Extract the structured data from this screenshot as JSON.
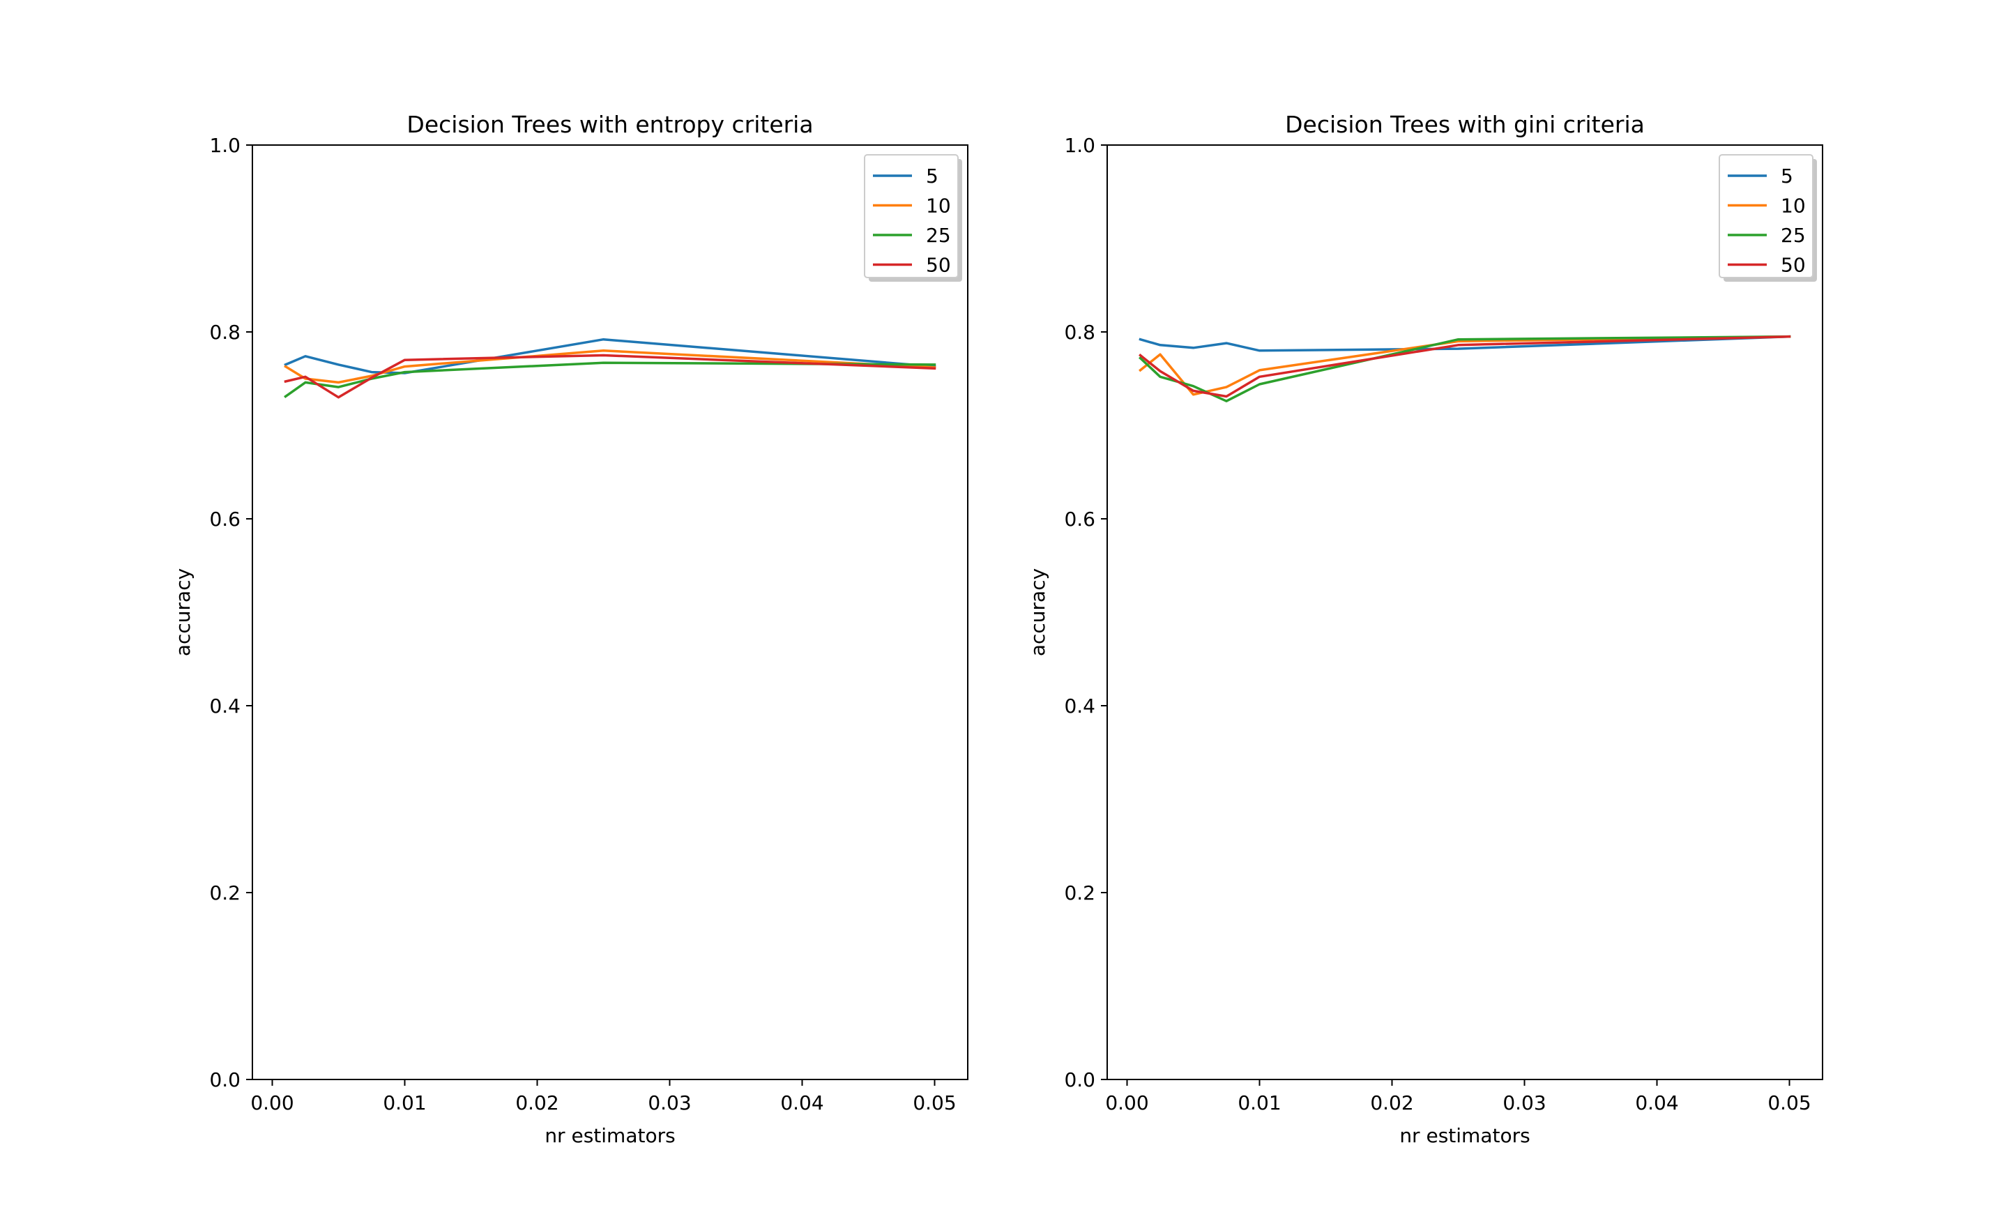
{
  "chart_data": [
    {
      "type": "line",
      "title": "Decision Trees with entropy criteria",
      "xlabel": "nr estimators",
      "ylabel": "accuracy",
      "xlim": [
        -0.0015,
        0.0525
      ],
      "ylim": [
        0.0,
        1.0
      ],
      "xticks": [
        0.0,
        0.01,
        0.02,
        0.03,
        0.04,
        0.05
      ],
      "xtick_labels": [
        "0.00",
        "0.01",
        "0.02",
        "0.03",
        "0.04",
        "0.05"
      ],
      "yticks": [
        0.0,
        0.2,
        0.4,
        0.6,
        0.8,
        1.0
      ],
      "ytick_labels": [
        "0.0",
        "0.2",
        "0.4",
        "0.6",
        "0.8",
        "1.0"
      ],
      "grid": false,
      "legend_position": "top-right",
      "series": [
        {
          "name": "5",
          "color": "#1f77b4",
          "x": [
            0.001,
            0.0025,
            0.005,
            0.0075,
            0.01,
            0.025,
            0.05
          ],
          "y": [
            0.765,
            0.774,
            0.765,
            0.757,
            0.756,
            0.792,
            0.763
          ]
        },
        {
          "name": "10",
          "color": "#ff7f0e",
          "x": [
            0.001,
            0.0025,
            0.005,
            0.0075,
            0.01,
            0.025,
            0.05
          ],
          "y": [
            0.763,
            0.75,
            0.746,
            0.753,
            0.763,
            0.78,
            0.762
          ]
        },
        {
          "name": "25",
          "color": "#2ca02c",
          "x": [
            0.001,
            0.0025,
            0.005,
            0.0075,
            0.01,
            0.025,
            0.05
          ],
          "y": [
            0.731,
            0.746,
            0.741,
            0.75,
            0.757,
            0.767,
            0.765
          ]
        },
        {
          "name": "50",
          "color": "#d62728",
          "x": [
            0.001,
            0.0025,
            0.005,
            0.0075,
            0.01,
            0.025,
            0.05
          ],
          "y": [
            0.747,
            0.752,
            0.73,
            0.751,
            0.77,
            0.775,
            0.761
          ]
        }
      ]
    },
    {
      "type": "line",
      "title": "Decision Trees with gini criteria",
      "xlabel": "nr estimators",
      "ylabel": "accuracy",
      "xlim": [
        -0.0015,
        0.0525
      ],
      "ylim": [
        0.0,
        1.0
      ],
      "xticks": [
        0.0,
        0.01,
        0.02,
        0.03,
        0.04,
        0.05
      ],
      "xtick_labels": [
        "0.00",
        "0.01",
        "0.02",
        "0.03",
        "0.04",
        "0.05"
      ],
      "yticks": [
        0.0,
        0.2,
        0.4,
        0.6,
        0.8,
        1.0
      ],
      "ytick_labels": [
        "0.0",
        "0.2",
        "0.4",
        "0.6",
        "0.8",
        "1.0"
      ],
      "grid": false,
      "legend_position": "top-right",
      "series": [
        {
          "name": "5",
          "color": "#1f77b4",
          "x": [
            0.001,
            0.0025,
            0.005,
            0.0075,
            0.01,
            0.025,
            0.05
          ],
          "y": [
            0.792,
            0.786,
            0.783,
            0.788,
            0.78,
            0.782,
            0.795
          ]
        },
        {
          "name": "10",
          "color": "#ff7f0e",
          "x": [
            0.001,
            0.0025,
            0.005,
            0.0075,
            0.01,
            0.025,
            0.05
          ],
          "y": [
            0.759,
            0.776,
            0.733,
            0.741,
            0.759,
            0.79,
            0.795
          ]
        },
        {
          "name": "25",
          "color": "#2ca02c",
          "x": [
            0.001,
            0.0025,
            0.005,
            0.0075,
            0.01,
            0.025,
            0.05
          ],
          "y": [
            0.772,
            0.752,
            0.742,
            0.726,
            0.744,
            0.792,
            0.795
          ]
        },
        {
          "name": "50",
          "color": "#d62728",
          "x": [
            0.001,
            0.0025,
            0.005,
            0.0075,
            0.01,
            0.025,
            0.05
          ],
          "y": [
            0.775,
            0.758,
            0.737,
            0.731,
            0.752,
            0.786,
            0.795
          ]
        }
      ]
    }
  ]
}
